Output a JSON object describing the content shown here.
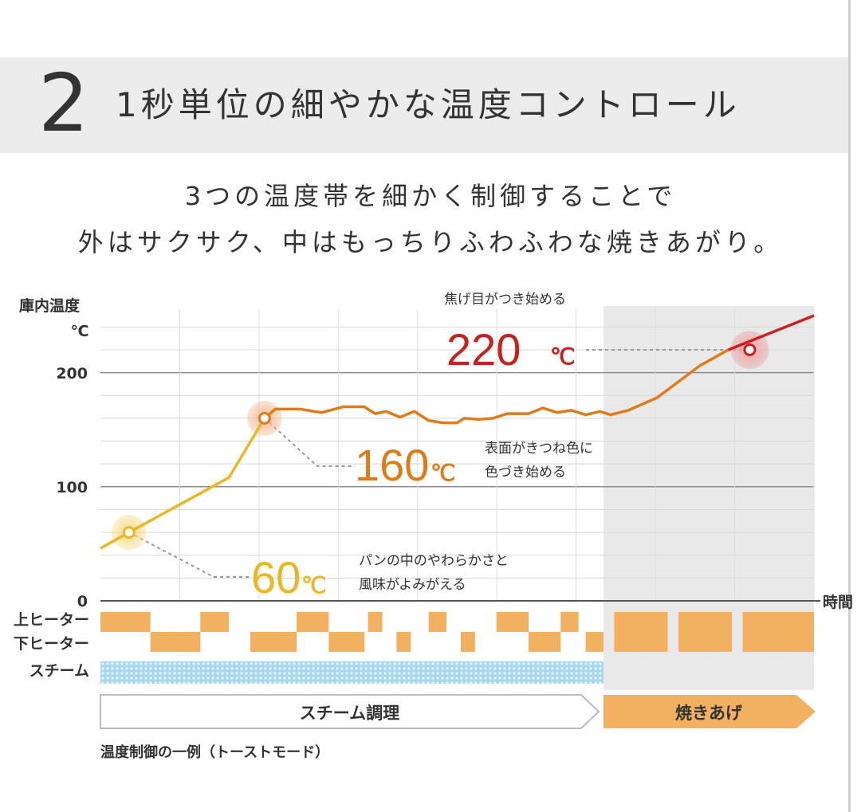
{
  "header": {
    "number": "2",
    "title": "1秒単位の細やかな温度コントロール"
  },
  "subtitle": {
    "line1": "3つの温度帯を細かく制御することで",
    "line2": "外はサクサク、中はもっちりふわふわな焼きあがり。"
  },
  "colors": {
    "yellow": "#e9b824",
    "orange": "#e07b1a",
    "red": "#cc1f1f",
    "heater": "#f2b061",
    "steam": "#7fc3e6",
    "shade": "#e9e9e9",
    "gray_text": "#333333"
  },
  "chart_data": {
    "type": "line",
    "ylabel_line1": "庫内温度",
    "ylabel_line2": "℃",
    "xlabel": "時間",
    "yticks": [
      "200",
      "100",
      "0"
    ],
    "ylim": [
      0,
      250
    ],
    "xlim": [
      0,
      100
    ],
    "shaded_range": [
      70.5,
      100
    ],
    "series": [
      {
        "name": "ramp",
        "color": "yellow",
        "points": [
          [
            0,
            46
          ],
          [
            4,
            60
          ],
          [
            18,
            108
          ],
          [
            23,
            160
          ]
        ]
      },
      {
        "name": "steam-hold",
        "color": "orange",
        "points": [
          [
            23,
            160
          ],
          [
            24.5,
            168
          ],
          [
            28,
            168
          ],
          [
            31,
            165
          ],
          [
            34,
            170
          ],
          [
            37,
            170
          ],
          [
            38.5,
            164
          ],
          [
            40,
            166
          ],
          [
            42,
            161
          ],
          [
            44,
            166
          ],
          [
            46,
            158
          ],
          [
            48,
            156
          ],
          [
            50,
            156
          ],
          [
            51,
            160
          ],
          [
            53,
            159
          ],
          [
            55,
            160
          ],
          [
            57,
            164
          ],
          [
            60,
            164
          ],
          [
            62,
            169
          ],
          [
            64,
            165
          ],
          [
            66,
            167
          ],
          [
            68,
            163
          ],
          [
            70,
            166
          ],
          [
            71.5,
            163
          ],
          [
            74,
            167
          ],
          [
            78,
            178
          ],
          [
            84,
            206
          ],
          [
            88,
            220
          ]
        ]
      },
      {
        "name": "browning",
        "color": "red",
        "points": [
          [
            88,
            220
          ],
          [
            100,
            250
          ]
        ]
      }
    ],
    "annotations": [
      {
        "name": "60",
        "value": "60",
        "unit": "℃",
        "color": "yellow",
        "point": [
          4,
          60
        ],
        "caption_line1": "パンの中のやわらかさと",
        "caption_line2": "風味がよみがえる"
      },
      {
        "name": "160",
        "value": "160",
        "unit": "℃",
        "color": "orange",
        "point": [
          23,
          160
        ],
        "caption_line1": "表面がきつね色に",
        "caption_line2": "色づき始める"
      },
      {
        "name": "220",
        "value": "220",
        "unit": "℃",
        "color": "red",
        "point": [
          91,
          220
        ],
        "caption_line1": "焦げ目がつき始める"
      }
    ],
    "rows": [
      {
        "label": "上ヒーター"
      },
      {
        "label": "下ヒーター"
      },
      {
        "label": "スチーム"
      }
    ],
    "upper_heater": [
      [
        0,
        7
      ],
      [
        14,
        18
      ],
      [
        27.5,
        32
      ],
      [
        37.5,
        39.5
      ],
      [
        46,
        48.5
      ],
      [
        55.5,
        60
      ],
      [
        64.5,
        67
      ]
    ],
    "lower_heater": [
      [
        7,
        14
      ],
      [
        21,
        27.5
      ],
      [
        32,
        37
      ],
      [
        41.5,
        43.5
      ],
      [
        50.5,
        52.5
      ],
      [
        60,
        64.5
      ],
      [
        68,
        70.5
      ]
    ],
    "burn_blocks": [
      [
        72,
        79.5
      ],
      [
        81,
        88.5
      ],
      [
        90,
        100
      ]
    ],
    "steam_range": [
      0,
      70.5
    ],
    "phases": [
      {
        "label": "スチーム調理",
        "range": [
          0,
          70.5
        ],
        "style": "outline"
      },
      {
        "label": "焼きあげ",
        "range": [
          70.5,
          100
        ],
        "style": "filled"
      }
    ],
    "caption": "温度制御の一例（トーストモード）"
  }
}
